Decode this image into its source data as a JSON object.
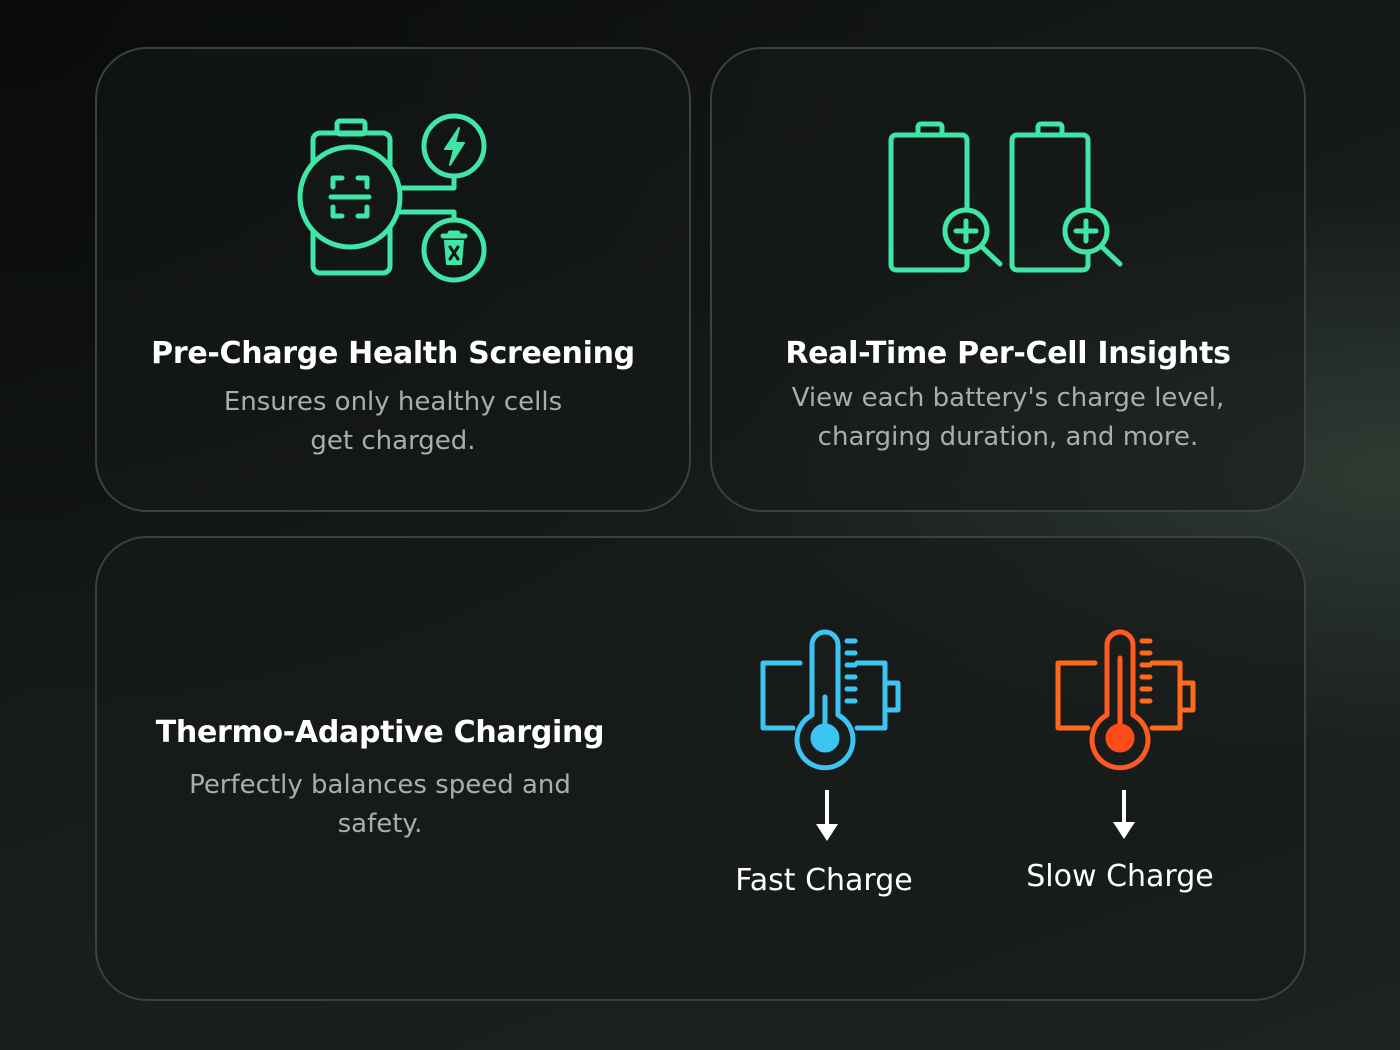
{
  "cards": [
    {
      "title": "Pre-Charge Health Screening",
      "description": "Ensures only healthy cells get charged.",
      "icon": "battery-scan-icon"
    },
    {
      "title": "Real-Time Per-Cell Insights",
      "description": "View each battery's charge level, charging duration, and more.",
      "icon": "battery-magnifier-icon"
    },
    {
      "title": "Thermo-Adaptive Charging",
      "description": "Perfectly balances speed and safety.",
      "modes": [
        {
          "label": "Fast Charge",
          "icon": "cold-thermometer-battery-icon",
          "color": "#3cc4f2"
        },
        {
          "label": "Slow Charge",
          "icon": "hot-thermometer-battery-icon",
          "color": "#ff5a1f"
        }
      ]
    }
  ],
  "colors": {
    "accent_green": "#3fe6a6",
    "cold": "#3cc4f2",
    "hot": "#ff5a1f"
  }
}
